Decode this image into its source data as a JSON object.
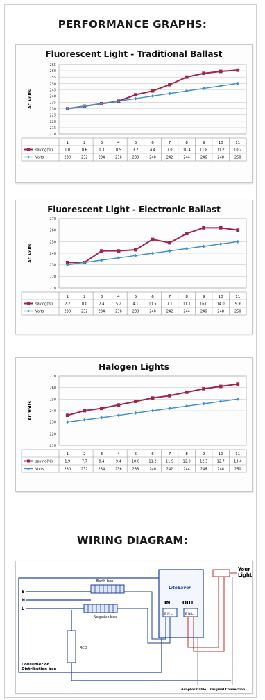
{
  "headings": {
    "performance": "PERFORMANCE GRAPHS:",
    "wiring": "WIRING DIAGRAM:"
  },
  "colors": {
    "saving": "#a3244a",
    "volts": "#3d8fcf",
    "grid": "#c9c9c9",
    "wire": "#1c3f9a",
    "wire_red": "#c02a2a"
  },
  "chart_data": [
    {
      "type": "line",
      "title": "Fluorescent Light - Traditional  Ballast",
      "ylabel": "AC Volts",
      "ylim": [
        210,
        265
      ],
      "yticks": [
        210,
        215,
        220,
        225,
        230,
        235,
        240,
        245,
        250,
        255,
        260,
        265
      ],
      "categories": [
        "1",
        "2",
        "3",
        "4",
        "5",
        "6",
        "7",
        "8",
        "9",
        "10",
        "11"
      ],
      "series": [
        {
          "name": "saving(%)",
          "display": [
            "1.0",
            "0.6",
            "0.3",
            "0.5",
            "3.2",
            "4.4",
            "7.0",
            "10.4",
            "11.8",
            "11.2",
            "10.2"
          ],
          "values": [
            230,
            232,
            234,
            236,
            241,
            244,
            249,
            255,
            258,
            259.5,
            260.5
          ]
        },
        {
          "name": "Volts",
          "display": [
            "230",
            "232",
            "234",
            "236",
            "238",
            "240",
            "242",
            "244",
            "246",
            "248",
            "250"
          ],
          "values": [
            230,
            232,
            234,
            236,
            238,
            240,
            242,
            244,
            246,
            248,
            250
          ]
        }
      ]
    },
    {
      "type": "line",
      "title": "Fluorescent Light - Electronic Ballast",
      "ylabel": "AC Volts",
      "ylim": [
        210,
        270
      ],
      "yticks": [
        210,
        220,
        230,
        240,
        250,
        260,
        270
      ],
      "categories": [
        "1",
        "2",
        "3",
        "4",
        "5",
        "6",
        "7",
        "8",
        "9",
        "10",
        "11"
      ],
      "series": [
        {
          "name": "saving(%)",
          "display": [
            "2.2",
            "0.0",
            "7.4",
            "5.2",
            "4.1",
            "11.5",
            "7.1",
            "11.1",
            "16.0",
            "14.0",
            "9.9"
          ],
          "values": [
            232,
            232,
            242,
            242,
            243,
            252,
            249,
            257,
            262,
            262,
            260
          ]
        },
        {
          "name": "Volts",
          "display": [
            "230",
            "232",
            "234",
            "236",
            "238",
            "240",
            "242",
            "244",
            "246",
            "248",
            "250"
          ],
          "values": [
            230,
            232,
            234,
            236,
            238,
            240,
            242,
            244,
            246,
            248,
            250
          ]
        }
      ]
    },
    {
      "type": "line",
      "title": "Halogen Lights",
      "ylabel": "AC Volts",
      "ylim": [
        210,
        270
      ],
      "yticks": [
        210,
        220,
        230,
        240,
        250,
        260,
        270
      ],
      "categories": [
        "1",
        "2",
        "3",
        "4",
        "5",
        "6",
        "7",
        "8",
        "9",
        "10",
        "11"
      ],
      "series": [
        {
          "name": "saving(%)",
          "display": [
            "1.9",
            "7.7",
            "8.4",
            "9.4",
            "10.0",
            "11.2",
            "11.9",
            "12.0",
            "12.3",
            "12.7",
            "13.4"
          ],
          "values": [
            236,
            240,
            242,
            245,
            248,
            251,
            253,
            256,
            259,
            261,
            263
          ]
        },
        {
          "name": "Volts",
          "display": [
            "230",
            "232",
            "234",
            "236",
            "238",
            "240",
            "242",
            "244",
            "246",
            "248",
            "250"
          ],
          "values": [
            230,
            232,
            234,
            236,
            238,
            240,
            242,
            244,
            246,
            248,
            250
          ]
        }
      ]
    }
  ],
  "wiring": {
    "earth_box": "Earth box",
    "negative_box": "Negative box",
    "rcd": "RCD",
    "consumer_box": "Consumer or\nDistribution box",
    "device_name": "LiteSaver",
    "in_label": "IN",
    "out_label": "OUT",
    "in_terminals": "E N L",
    "out_terminals": "E N L",
    "line_e": "E",
    "line_n": "N",
    "line_l": "L",
    "your_lights": "Your\nLights",
    "adaptor_cable": "Adaptor Cable",
    "original_connection": "Original Connection"
  }
}
